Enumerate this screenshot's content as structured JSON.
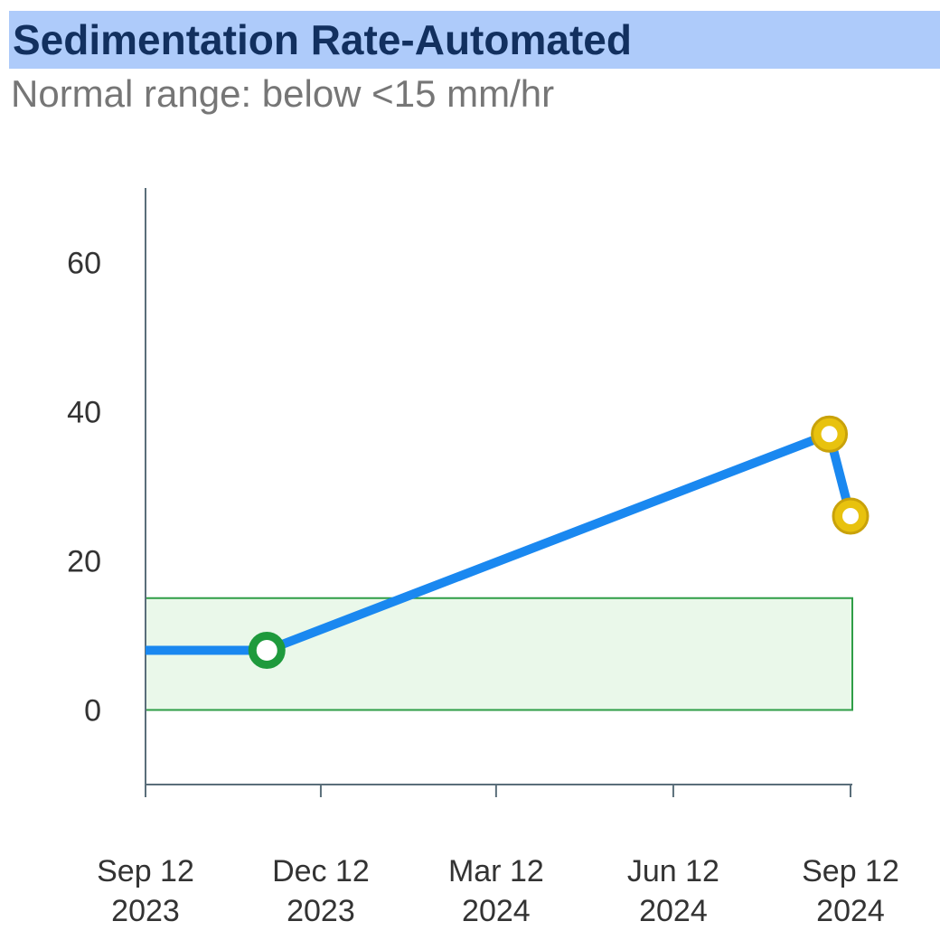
{
  "header": {
    "title": "Sedimentation Rate-Automated",
    "subtitle": "Normal range: below <15 mm/hr"
  },
  "chart_data": {
    "type": "line",
    "title": "Sedimentation Rate-Automated",
    "subtitle": "Normal range: below <15 mm/hr",
    "xlabel": "",
    "ylabel": "",
    "x_range": [
      "2023-09-12",
      "2024-09-12"
    ],
    "ylim": [
      -10,
      70
    ],
    "y_ticks": [
      0,
      20,
      40,
      60
    ],
    "x_ticks": [
      {
        "date": "2023-09-12",
        "line1": "Sep 12",
        "line2": "2023"
      },
      {
        "date": "2023-12-12",
        "line1": "Dec 12",
        "line2": "2023"
      },
      {
        "date": "2024-03-12",
        "line1": "Mar 12",
        "line2": "2024"
      },
      {
        "date": "2024-06-12",
        "line1": "Jun 12",
        "line2": "2024"
      },
      {
        "date": "2024-09-12",
        "line1": "Sep 12",
        "line2": "2024"
      }
    ],
    "normal_range": {
      "low": 0,
      "high": 15
    },
    "series": [
      {
        "values": [
          {
            "date": "2023-09-12",
            "y": 8,
            "marker": false
          },
          {
            "date": "2023-11-14",
            "y": 8,
            "marker": true,
            "status": "normal"
          },
          {
            "date": "2024-09-01",
            "y": 37,
            "marker": true,
            "status": "abnormal"
          },
          {
            "date": "2024-09-12",
            "y": 26,
            "marker": true,
            "status": "abnormal"
          }
        ]
      }
    ],
    "colors": {
      "line": "#1a88f0",
      "normal_marker": "#1e9a3c",
      "abnormal_marker": "#e8c20e",
      "abnormal_marker_edge": "#c9a20a",
      "range_fill": "#eaf8ea",
      "range_stroke": "#2f9e47",
      "axis": "#5a6e7a"
    },
    "grid": false,
    "legend": "none"
  }
}
